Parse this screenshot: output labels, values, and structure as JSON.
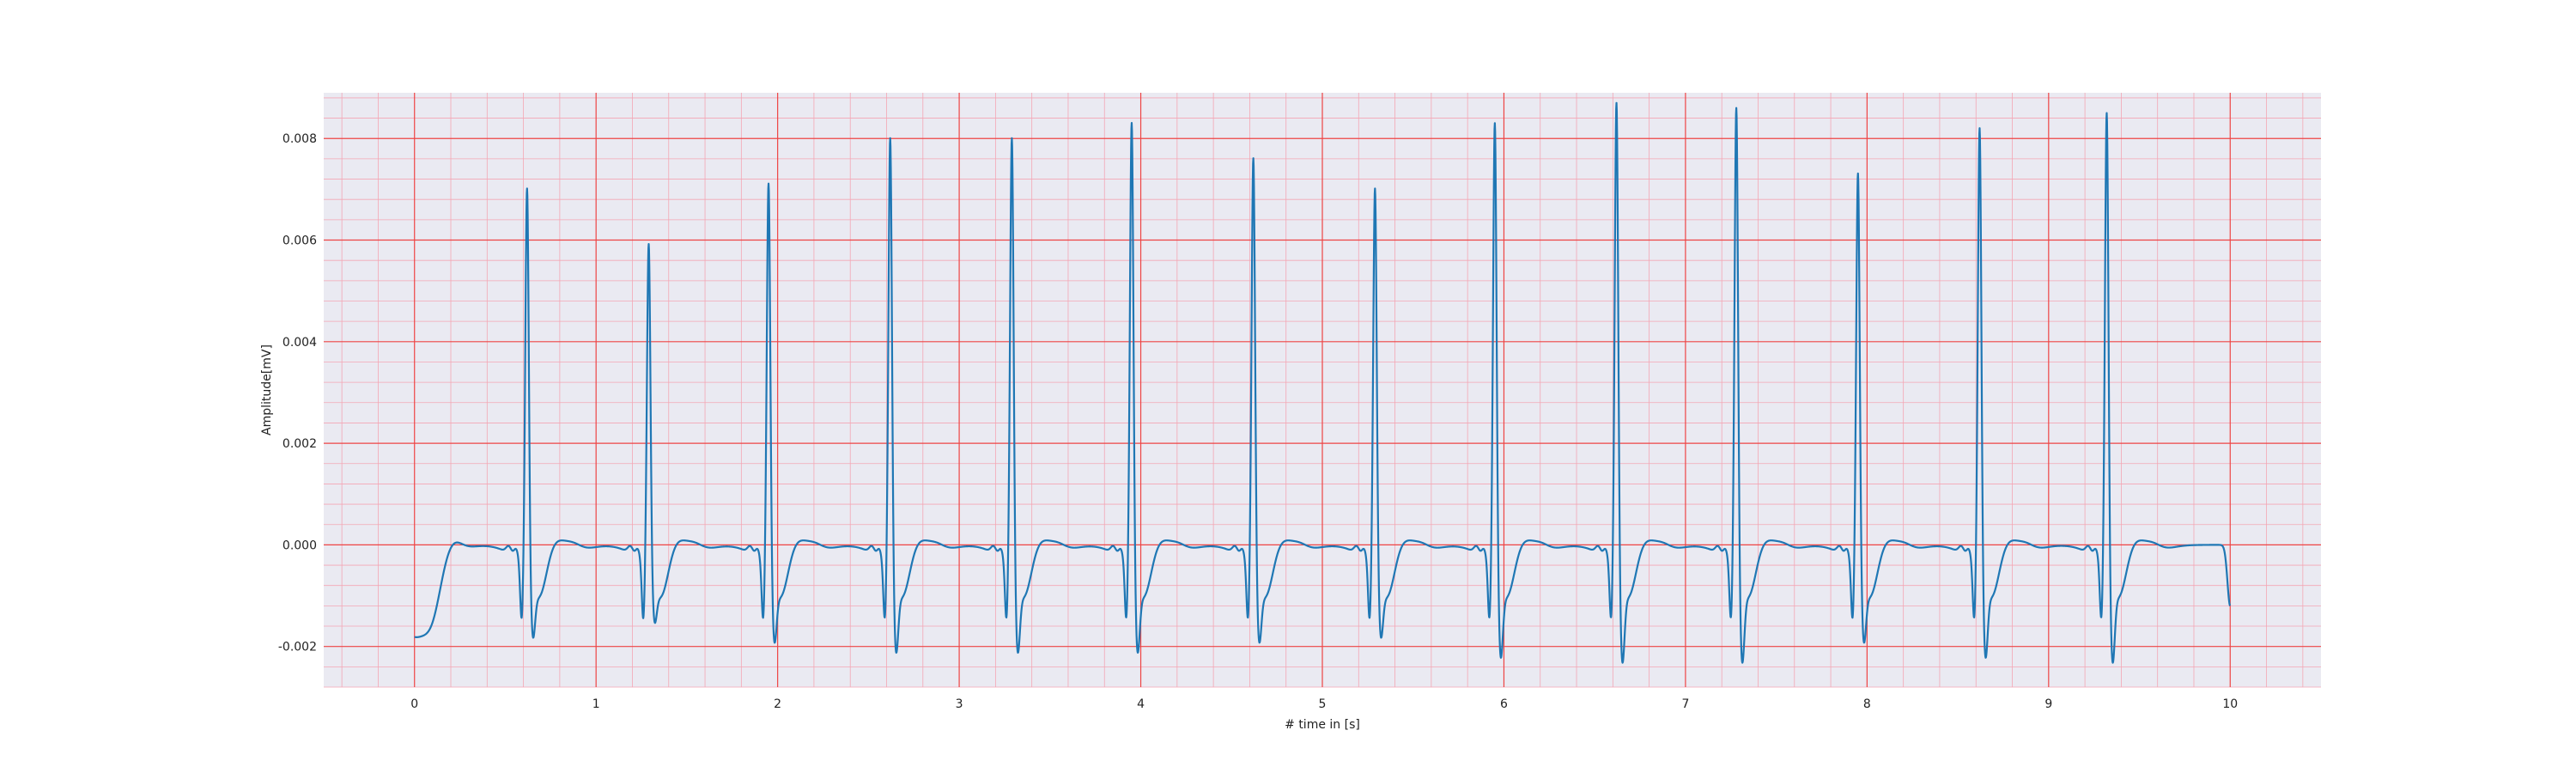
{
  "chart_data": {
    "type": "line",
    "title": "",
    "xlabel": "# time in [s]",
    "ylabel": "Amplitude[mV]",
    "xlim": [
      -0.5,
      10.5
    ],
    "ylim": [
      -0.0028,
      0.0089
    ],
    "x_ticks": [
      0,
      1,
      2,
      3,
      4,
      5,
      6,
      7,
      8,
      9,
      10
    ],
    "x_tick_labels": [
      "0",
      "1",
      "2",
      "3",
      "4",
      "5",
      "6",
      "7",
      "8",
      "9",
      "10"
    ],
    "y_ticks": [
      -0.002,
      0.0,
      0.002,
      0.004,
      0.006,
      0.008
    ],
    "y_tick_labels": [
      "-0.002",
      "0.000",
      "0.002",
      "0.004",
      "0.006",
      "0.008"
    ],
    "grid": "major red grid every 1 s / 0.002 mV, minor pink grid every 0.2 s / 0.0004 mV",
    "background": "#eaeaf2",
    "colors": {
      "line": "#1f77b4",
      "major_grid": "#ee4444",
      "minor_grid": "#f4a6b4"
    },
    "series": [
      {
        "x": [
          0,
          0.62,
          1.29,
          1.95,
          2.62,
          3.29,
          3.95,
          4.62,
          5.29,
          5.95,
          6.62,
          7.28,
          7.95,
          8.62,
          9.32,
          10
        ],
        "values": [
          -0.0022,
          0.0067,
          0.0056,
          0.0068,
          0.0077,
          0.0077,
          0.008,
          0.0073,
          0.0067,
          0.008,
          0.0084,
          0.0083,
          0.007,
          0.0079,
          0.0082,
          -0.0011
        ]
      }
    ],
    "beats": [
      {
        "t": 0.62,
        "r": 0.0067,
        "s": -0.0018
      },
      {
        "t": 1.29,
        "r": 0.0056,
        "s": -0.0015
      },
      {
        "t": 1.95,
        "r": 0.0068,
        "s": -0.0019
      },
      {
        "t": 2.62,
        "r": 0.0077,
        "s": -0.0021
      },
      {
        "t": 3.29,
        "r": 0.0077,
        "s": -0.0021
      },
      {
        "t": 3.95,
        "r": 0.008,
        "s": -0.0021
      },
      {
        "t": 4.62,
        "r": 0.0073,
        "s": -0.0019
      },
      {
        "t": 5.29,
        "r": 0.0067,
        "s": -0.0018
      },
      {
        "t": 5.95,
        "r": 0.008,
        "s": -0.0022
      },
      {
        "t": 6.62,
        "r": 0.0084,
        "s": -0.0023
      },
      {
        "t": 7.28,
        "r": 0.0083,
        "s": -0.0023
      },
      {
        "t": 7.95,
        "r": 0.007,
        "s": -0.0019
      },
      {
        "t": 8.62,
        "r": 0.0079,
        "s": -0.0022
      },
      {
        "t": 9.32,
        "r": 0.0082,
        "s": -0.0023
      }
    ]
  }
}
